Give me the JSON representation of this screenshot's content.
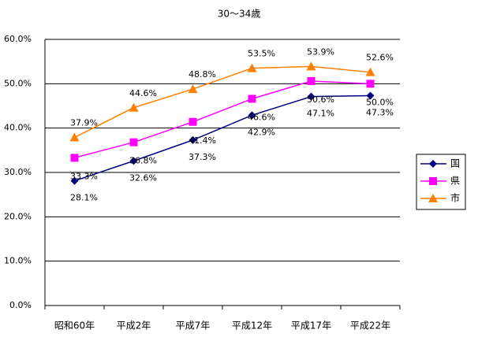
{
  "chart_data": {
    "type": "line",
    "title": "30〜34歳",
    "categories": [
      "昭和60年",
      "平成2年",
      "平成7年",
      "平成12年",
      "平成17年",
      "平成22年"
    ],
    "series": [
      {
        "name": "国",
        "color": "#000080",
        "marker": "diamond",
        "values": [
          28.1,
          32.6,
          37.3,
          42.9,
          47.1,
          47.3
        ],
        "value_labels": [
          "28.1%",
          "32.6%",
          "37.3%",
          "42.9%",
          "47.1%",
          "47.3%"
        ]
      },
      {
        "name": "県",
        "color": "#ff00ff",
        "marker": "square",
        "values": [
          33.3,
          36.8,
          41.4,
          46.6,
          50.6,
          50.0
        ],
        "value_labels": [
          "33.3%",
          "36.8%",
          "41.4%",
          "46.6%",
          "50.6%",
          "50.0%"
        ]
      },
      {
        "name": "市",
        "color": "#ff8000",
        "marker": "triangle",
        "values": [
          37.9,
          44.6,
          48.8,
          53.5,
          53.9,
          52.6
        ],
        "value_labels": [
          "37.9%",
          "44.6%",
          "48.8%",
          "53.5%",
          "53.9%",
          "52.6%"
        ]
      }
    ],
    "ylim": [
      0,
      60
    ],
    "yticks": [
      {
        "value": 0,
        "label": "0.0%"
      },
      {
        "value": 10,
        "label": "10.0%"
      },
      {
        "value": 20,
        "label": "20.0%"
      },
      {
        "value": 30,
        "label": "30.0%"
      },
      {
        "value": 40,
        "label": "40.0%"
      },
      {
        "value": 50,
        "label": "50.0%"
      },
      {
        "value": 60,
        "label": "60.0%"
      }
    ],
    "grid": true,
    "legend": "right"
  }
}
